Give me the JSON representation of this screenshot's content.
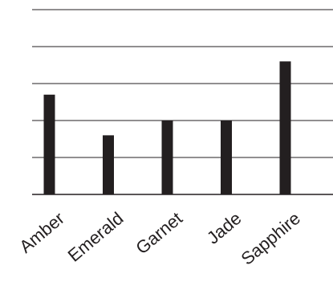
{
  "chart_data": {
    "type": "bar",
    "categories": [
      "Amber",
      "Emerald",
      "Garnet",
      "Jade",
      "Sapphire"
    ],
    "values": [
      2.7,
      1.6,
      2.0,
      2.0,
      3.6
    ],
    "ylim": [
      0,
      5
    ],
    "yticks": [
      0,
      1,
      2,
      3,
      4,
      5
    ],
    "grid": true,
    "x_tick_rotation": -40,
    "colors": {
      "bar": "#231f20",
      "grid": "#231f20"
    }
  }
}
